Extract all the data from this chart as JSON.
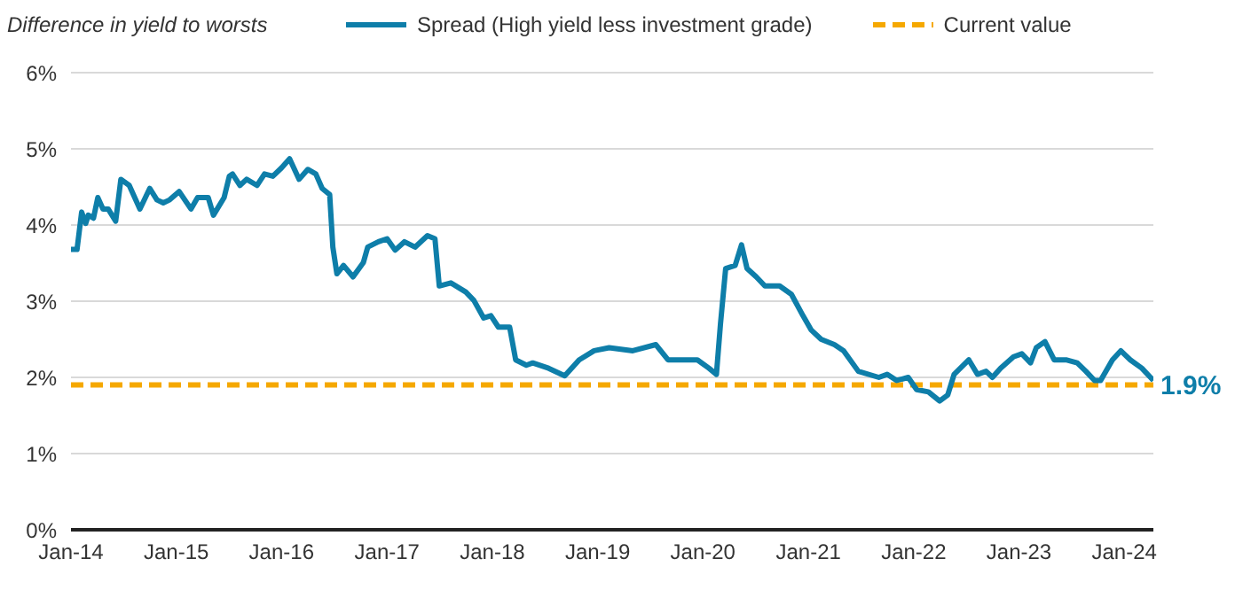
{
  "chart_data": {
    "type": "line",
    "ylabel": "Difference in yield to worsts",
    "x": [
      "2014-01-01",
      "2014-01-22",
      "2014-02-07",
      "2014-02-21",
      "2014-03-02",
      "2014-03-20",
      "2014-04-04",
      "2014-04-22",
      "2014-05-10",
      "2014-06-05",
      "2014-06-23",
      "2014-07-22",
      "2014-08-28",
      "2014-10-01",
      "2014-10-26",
      "2014-11-17",
      "2014-12-09",
      "2015-01-11",
      "2015-02-21",
      "2015-03-16",
      "2015-04-22",
      "2015-05-10",
      "2015-06-16",
      "2015-07-04",
      "2015-07-15",
      "2015-08-10",
      "2015-09-02",
      "2015-10-08",
      "2015-11-03",
      "2015-12-02",
      "2016-01-01",
      "2016-01-29",
      "2016-03-02",
      "2016-04-01",
      "2016-04-29",
      "2016-05-21",
      "2016-06-16",
      "2016-06-27",
      "2016-07-11",
      "2016-08-03",
      "2016-09-05",
      "2016-10-11",
      "2016-10-26",
      "2016-12-02",
      "2017-01-01",
      "2017-01-29",
      "2017-03-02",
      "2017-04-08",
      "2017-05-21",
      "2017-06-16",
      "2017-07-01",
      "2017-08-10",
      "2017-10-01",
      "2017-10-29",
      "2017-12-02",
      "2017-12-27",
      "2018-01-22",
      "2018-03-02",
      "2018-03-23",
      "2018-04-29",
      "2018-05-21",
      "2018-07-15",
      "2018-09-09",
      "2018-10-29",
      "2018-12-20",
      "2019-02-10",
      "2019-05-03",
      "2019-07-22",
      "2019-09-02",
      "2019-12-13",
      "2020-01-22",
      "2020-02-17",
      "2020-03-02",
      "2020-03-20",
      "2020-04-22",
      "2020-05-14",
      "2020-06-02",
      "2020-07-04",
      "2020-08-03",
      "2020-09-23",
      "2020-11-03",
      "2020-12-13",
      "2021-01-11",
      "2021-02-14",
      "2021-04-01",
      "2021-05-03",
      "2021-06-23",
      "2021-09-02",
      "2021-10-01",
      "2021-11-03",
      "2021-12-13",
      "2022-01-11",
      "2022-02-21",
      "2022-04-01",
      "2022-04-29",
      "2022-05-21",
      "2022-07-11",
      "2022-08-10",
      "2022-09-09",
      "2022-10-01",
      "2022-10-29",
      "2022-12-13",
      "2023-01-11",
      "2023-02-10",
      "2023-03-02",
      "2023-04-01",
      "2023-05-03",
      "2023-06-13",
      "2023-07-22",
      "2023-08-21",
      "2023-09-20",
      "2023-10-11",
      "2023-11-21",
      "2023-12-20",
      "2024-01-22",
      "2024-03-02",
      "2024-04-01",
      "2024-04-11"
    ],
    "series": [
      {
        "name": "Spread (High yield less investment grade)",
        "color": "#0e7ea9",
        "values": [
          3.68,
          3.68,
          4.17,
          4.02,
          4.13,
          4.09,
          4.36,
          4.21,
          4.21,
          4.05,
          4.6,
          4.52,
          4.21,
          4.48,
          4.33,
          4.29,
          4.33,
          4.44,
          4.21,
          4.36,
          4.36,
          4.13,
          4.36,
          4.64,
          4.67,
          4.52,
          4.6,
          4.52,
          4.67,
          4.64,
          4.75,
          4.87,
          4.6,
          4.73,
          4.67,
          4.48,
          4.4,
          3.71,
          3.36,
          3.47,
          3.32,
          3.51,
          3.71,
          3.78,
          3.82,
          3.67,
          3.78,
          3.71,
          3.86,
          3.82,
          3.2,
          3.24,
          3.12,
          3.01,
          2.78,
          2.81,
          2.66,
          2.66,
          2.23,
          2.16,
          2.19,
          2.12,
          2.02,
          2.23,
          2.35,
          2.39,
          2.35,
          2.43,
          2.23,
          2.23,
          2.12,
          2.04,
          2.7,
          3.43,
          3.47,
          3.74,
          3.43,
          3.32,
          3.2,
          3.2,
          3.09,
          2.81,
          2.62,
          2.5,
          2.43,
          2.35,
          2.08,
          2.0,
          2.04,
          1.96,
          2.0,
          1.84,
          1.81,
          1.69,
          1.77,
          2.04,
          2.23,
          2.04,
          2.08,
          2.0,
          2.12,
          2.27,
          2.31,
          2.19,
          2.39,
          2.47,
          2.23,
          2.23,
          2.19,
          2.08,
          1.96,
          1.96,
          2.23,
          2.35,
          2.23,
          2.12,
          2.0,
          1.96
        ]
      }
    ],
    "xlim": [
      "2014-01-01",
      "2024-04-11"
    ],
    "xticks": [
      {
        "value": "2014-01",
        "label": "Jan-14"
      },
      {
        "value": "2015-01",
        "label": "Jan-15"
      },
      {
        "value": "2016-01",
        "label": "Jan-16"
      },
      {
        "value": "2017-01",
        "label": "Jan-17"
      },
      {
        "value": "2018-01",
        "label": "Jan-18"
      },
      {
        "value": "2019-01",
        "label": "Jan-19"
      },
      {
        "value": "2020-01",
        "label": "Jan-20"
      },
      {
        "value": "2021-01",
        "label": "Jan-21"
      },
      {
        "value": "2022-01",
        "label": "Jan-22"
      },
      {
        "value": "2023-01",
        "label": "Jan-23"
      },
      {
        "value": "2024-01",
        "label": "Jan-24"
      }
    ],
    "ylim": [
      0,
      6
    ],
    "yticks": [
      {
        "value": 0,
        "label": "0%"
      },
      {
        "value": 1,
        "label": "1%"
      },
      {
        "value": 2,
        "label": "2%"
      },
      {
        "value": 3,
        "label": "3%"
      },
      {
        "value": 4,
        "label": "4%"
      },
      {
        "value": 5,
        "label": "5%"
      },
      {
        "value": 6,
        "label": "6%"
      }
    ],
    "ref_lines": [
      {
        "axis": "y",
        "value": 1.9,
        "label": "Current value",
        "color": "#f5a800",
        "line_style": "dashed"
      }
    ],
    "annotations": [
      {
        "text": "1.9%",
        "x": "2024-04-11",
        "y": 1.9
      }
    ],
    "grid": "y",
    "legend": "top",
    "marker": "none",
    "line_style": "solid"
  }
}
